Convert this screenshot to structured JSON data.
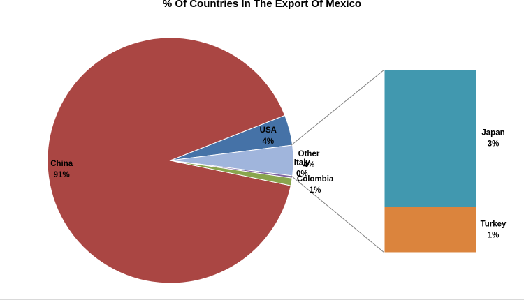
{
  "chart_data": {
    "type": "pie",
    "subtype": "pie-of-bar",
    "title": "% Of Countries In The Export Of Mexico",
    "slices": [
      {
        "name": "China",
        "value": 91,
        "label": "91%",
        "color": "#AA4643"
      },
      {
        "name": "USA",
        "value": 4,
        "label": "4%",
        "color": "#4572A7"
      },
      {
        "name": "Other",
        "value": 4,
        "label": "4%",
        "color": "#A0B5DC"
      },
      {
        "name": "Italy",
        "value": 0,
        "label": "0%",
        "color": "#8064A2"
      },
      {
        "name": "Colombia",
        "value": 1,
        "label": "1%",
        "color": "#89A54E"
      }
    ],
    "breakdown_of": "Other",
    "breakdown": [
      {
        "name": "Japan",
        "value": 3,
        "label": "3%",
        "color": "#4198AF"
      },
      {
        "name": "Turkey",
        "value": 1,
        "label": "1%",
        "color": "#DB843D"
      }
    ]
  }
}
